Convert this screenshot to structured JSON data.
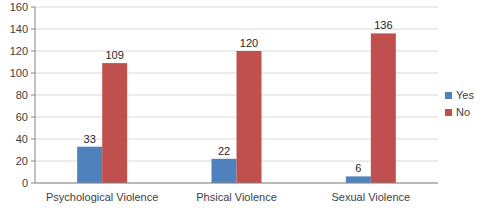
{
  "chart_data": {
    "type": "bar",
    "categories": [
      "Psychological Violence",
      "Phsical Violence",
      "Sexual Violence"
    ],
    "series": [
      {
        "name": "Yes",
        "color": "#4f81bd",
        "values": [
          33,
          22,
          6
        ]
      },
      {
        "name": "No",
        "color": "#c0504d",
        "values": [
          109,
          120,
          136
        ]
      }
    ],
    "ylim": [
      0,
      160
    ],
    "yticks": [
      0,
      20,
      40,
      60,
      80,
      100,
      120,
      140,
      160
    ],
    "grid": true,
    "legend": "right",
    "data_labels": true
  }
}
